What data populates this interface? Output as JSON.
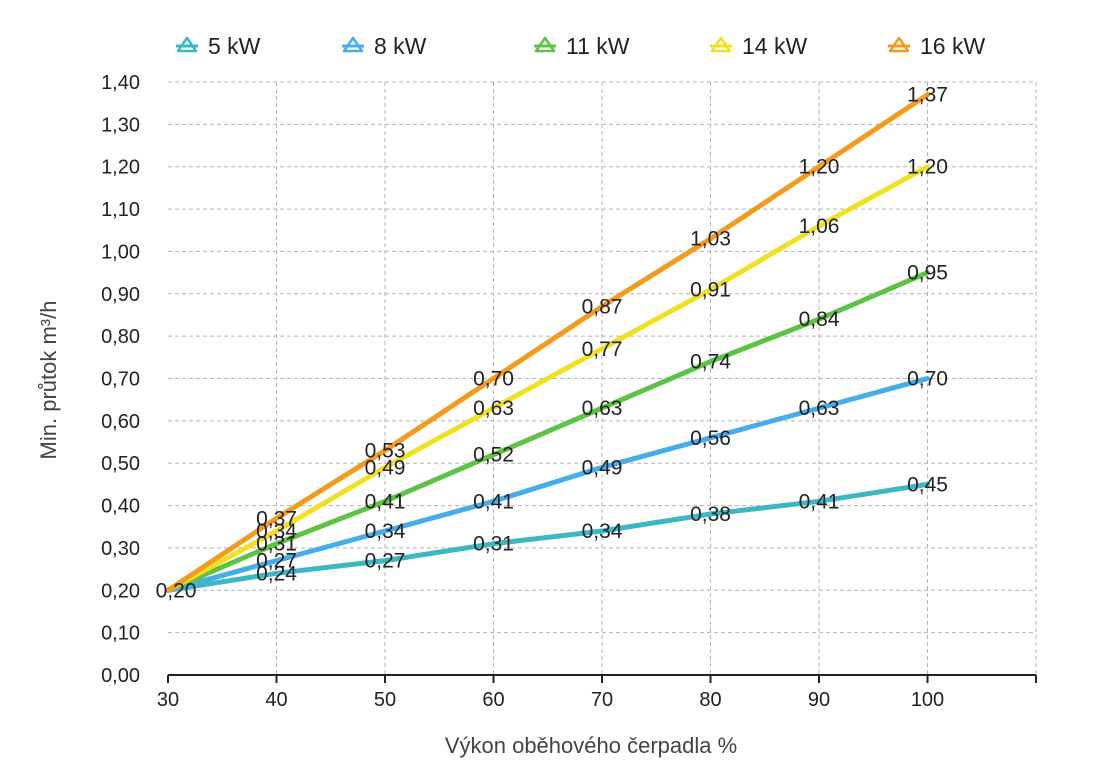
{
  "chart_data": {
    "type": "line",
    "xlabel": "Výkon oběhového čerpadla %",
    "ylabel": "Min. průtok m³/h",
    "xlim": [
      30,
      110
    ],
    "ylim": [
      0,
      1.4
    ],
    "x_ticks": [
      "30",
      "40",
      "50",
      "60",
      "70",
      "80",
      "90",
      "100"
    ],
    "y_ticks": [
      "0,00",
      "0,10",
      "0,20",
      "0,30",
      "0,40",
      "0,50",
      "0,60",
      "0,70",
      "0,80",
      "0,90",
      "1,00",
      "1,10",
      "1,20",
      "1,30",
      "1,40"
    ],
    "grid": true,
    "legend_position": "top",
    "origin_label": {
      "x": 30,
      "y": 0.2,
      "label": "0,20"
    },
    "series": [
      {
        "name": "5 kW",
        "color": "#3cb8c4",
        "x": [
          30,
          40,
          50,
          60,
          70,
          80,
          90,
          100
        ],
        "values": [
          0.2,
          0.24,
          0.27,
          0.31,
          0.34,
          0.38,
          0.41,
          0.45
        ],
        "labels": [
          "",
          "0,24",
          "0,27",
          "0,31",
          "0,34",
          "0,38",
          "0,41",
          "0,45"
        ]
      },
      {
        "name": "8 kW",
        "color": "#45aee8",
        "x": [
          30,
          40,
          50,
          60,
          70,
          80,
          90,
          100
        ],
        "values": [
          0.2,
          0.27,
          0.34,
          0.41,
          0.49,
          0.56,
          0.63,
          0.7
        ],
        "labels": [
          "",
          "0,27",
          "0,34",
          "0,41",
          "0,49",
          "0,56",
          "0,63",
          "0,70"
        ]
      },
      {
        "name": "11 kW",
        "color": "#5dc344",
        "x": [
          30,
          40,
          50,
          60,
          70,
          80,
          90,
          100
        ],
        "values": [
          0.2,
          0.31,
          0.41,
          0.52,
          0.63,
          0.74,
          0.84,
          0.95
        ],
        "labels": [
          "",
          "0,31",
          "0,41",
          "0,52",
          "0,63",
          "0,74",
          "0,84",
          "0,95"
        ]
      },
      {
        "name": "14 kW",
        "color": "#f1e01e",
        "x": [
          30,
          40,
          50,
          60,
          70,
          80,
          90,
          100
        ],
        "values": [
          0.2,
          0.34,
          0.49,
          0.63,
          0.77,
          0.91,
          1.06,
          1.2
        ],
        "labels": [
          "",
          "0,34",
          "0,49",
          "0,63",
          "0,77",
          "0,91",
          "1,06",
          "1,20"
        ]
      },
      {
        "name": "16 kW",
        "color": "#f29b1c",
        "x": [
          30,
          40,
          50,
          60,
          70,
          80,
          90,
          100
        ],
        "values": [
          0.2,
          0.37,
          0.53,
          0.7,
          0.87,
          1.03,
          1.2,
          1.37
        ],
        "labels": [
          "",
          "0,37",
          "0,53",
          "0,70",
          "0,87",
          "1,03",
          "1,20",
          "1,37"
        ]
      }
    ]
  }
}
